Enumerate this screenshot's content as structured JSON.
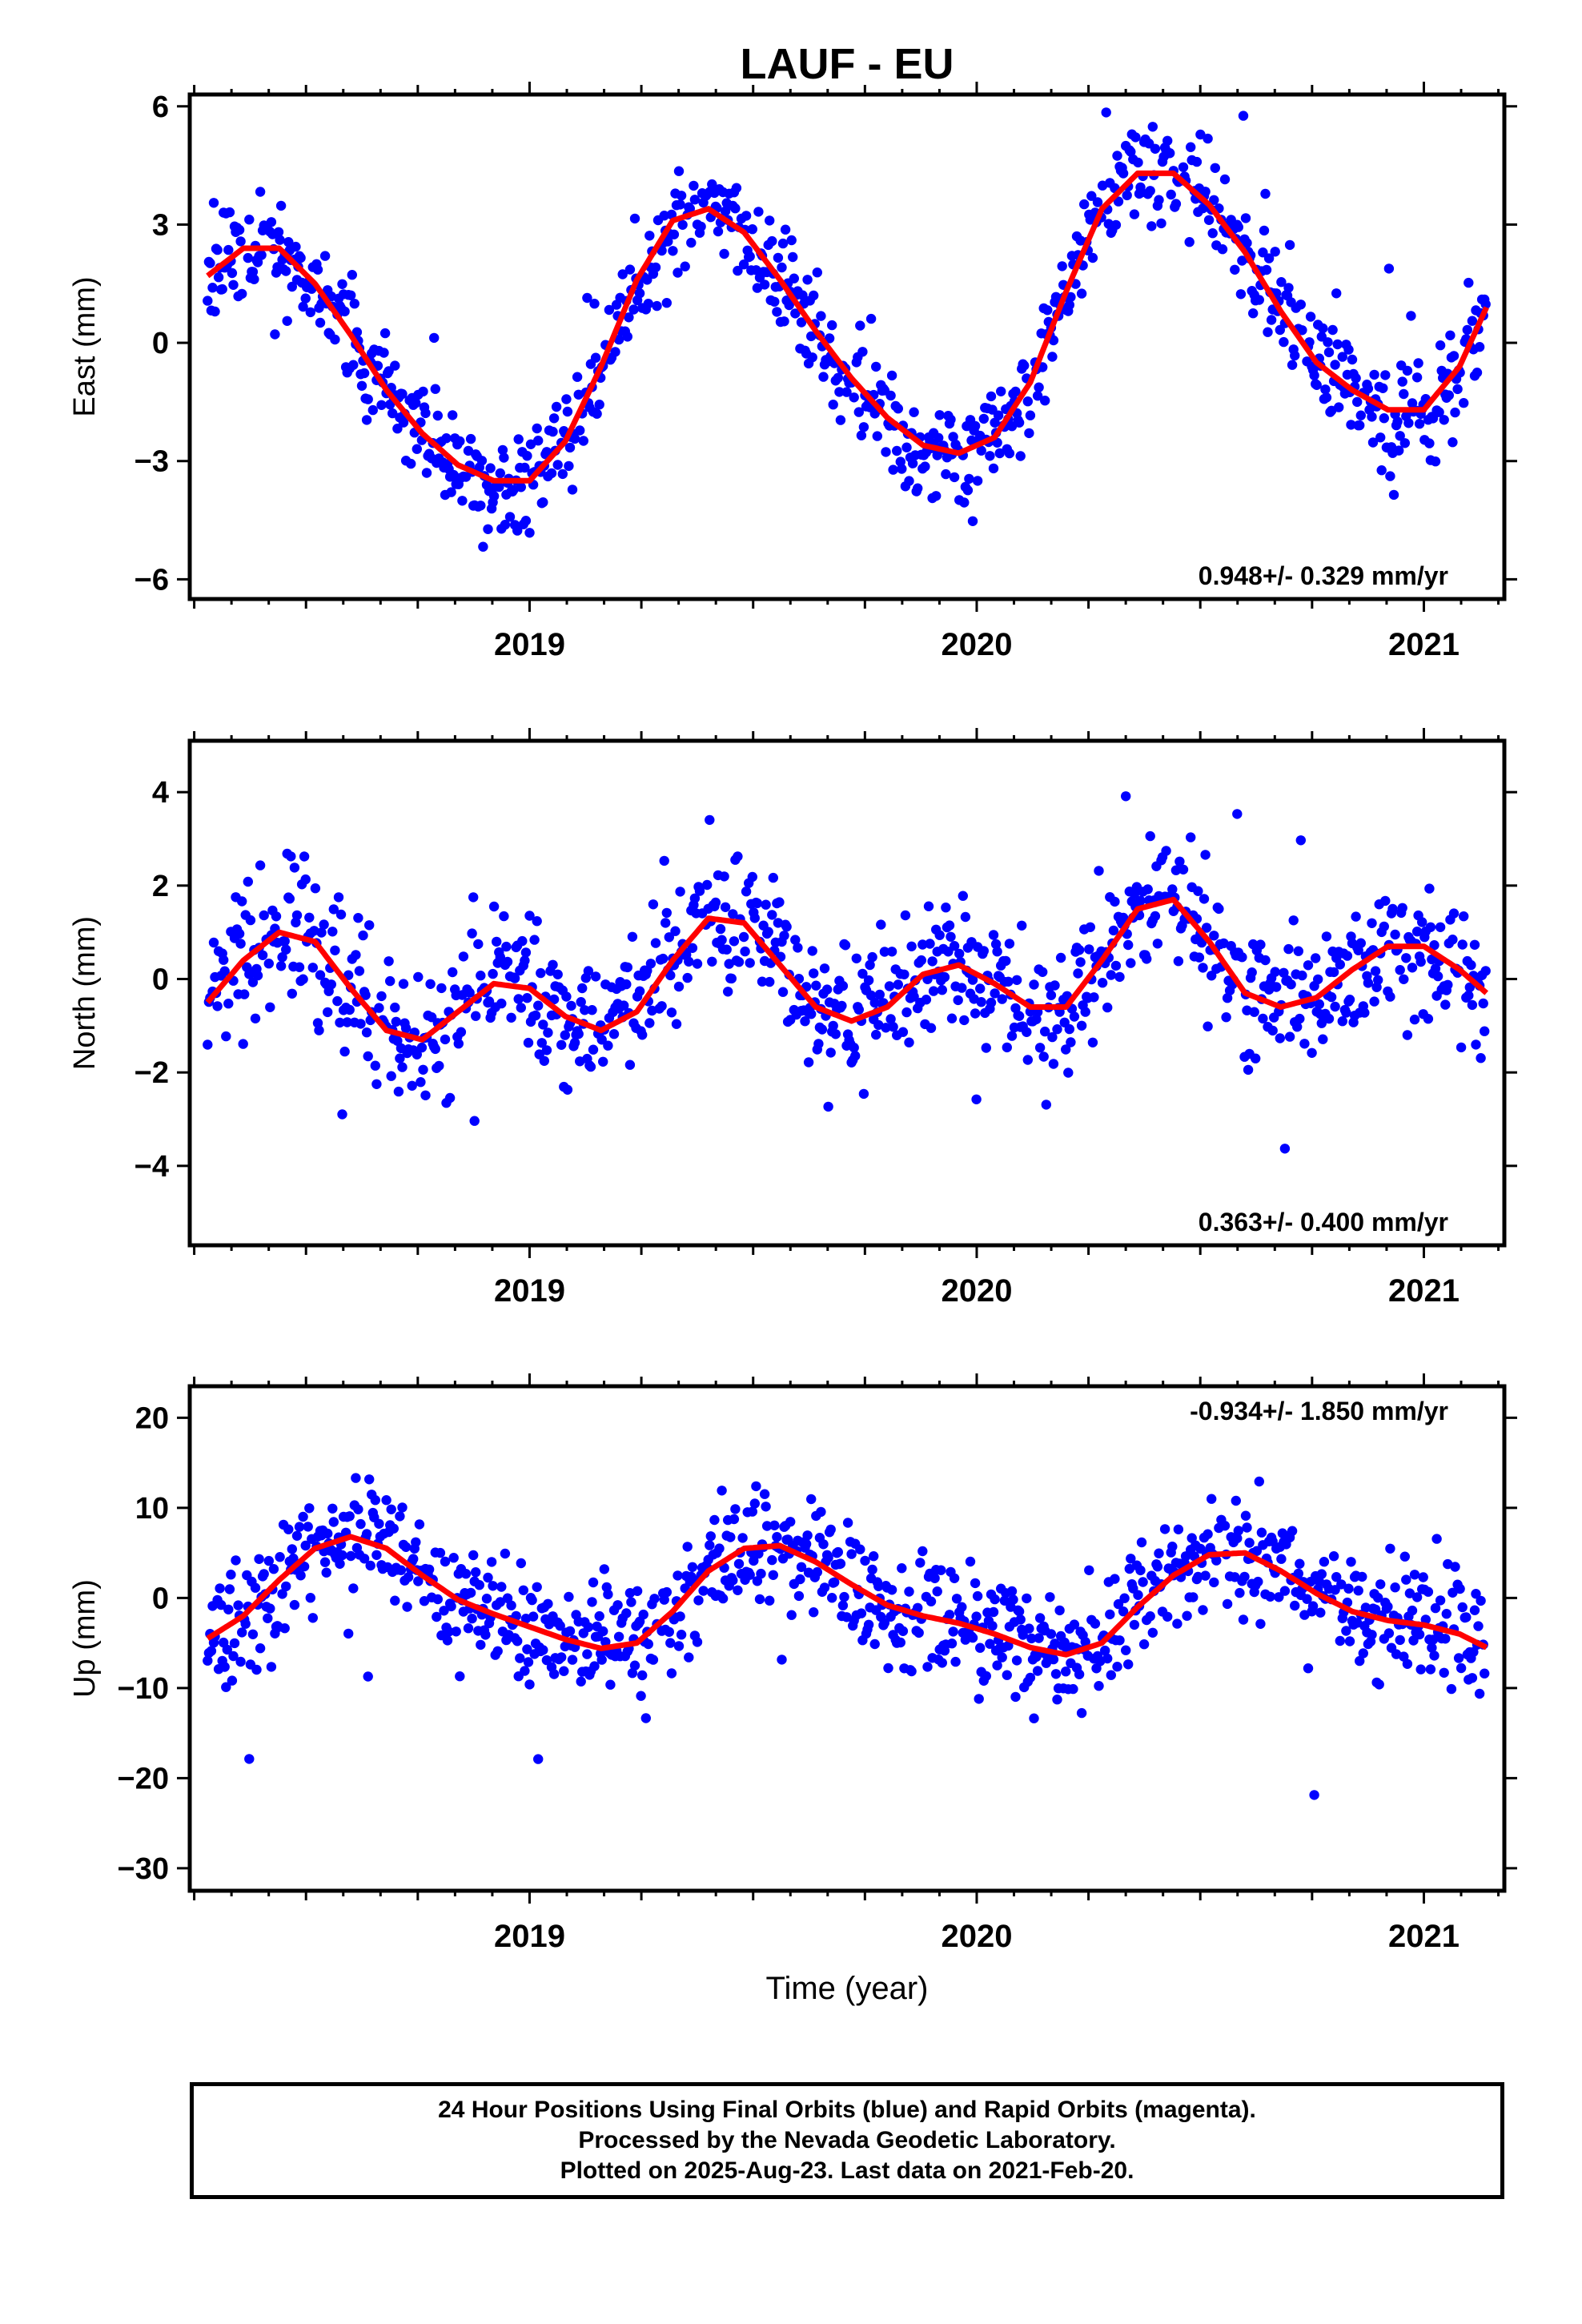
{
  "page": {
    "title": "LAUF - EU",
    "xlabel": "Time (year)",
    "footer": [
      "24 Hour Positions Using Final Orbits (blue) and Rapid Orbits (magenta).",
      "Processed by the Nevada Geodetic Laboratory.",
      "Plotted on 2025-Aug-23. Last data on 2021-Feb-20."
    ]
  },
  "colors": {
    "points": "#0000ff",
    "model": "#ff0000",
    "frame": "#000000"
  },
  "chart_data": [
    {
      "type": "scatter",
      "name": "east",
      "ylabel": "East (mm)",
      "xlim": [
        2018.24,
        2021.18
      ],
      "ylim": [
        -6.5,
        6.3
      ],
      "yticks": [
        6,
        3,
        0,
        -3,
        -6
      ],
      "ytick_labels": [
        "6",
        "3",
        "0",
        "−3",
        "−6"
      ],
      "xticks": [
        2019,
        2020,
        2021
      ],
      "xtick_labels": [
        "2019",
        "2020",
        "2021"
      ],
      "rate_label": "0.948+/- 0.329 mm/yr",
      "rate_position": "bottom-right",
      "model_x": [
        2018.28,
        2018.36,
        2018.44,
        2018.52,
        2018.6,
        2018.68,
        2018.76,
        2018.84,
        2018.92,
        2019.0,
        2019.08,
        2019.16,
        2019.24,
        2019.32,
        2019.4,
        2019.48,
        2019.56,
        2019.64,
        2019.72,
        2019.8,
        2019.88,
        2019.96,
        2020.04,
        2020.12,
        2020.2,
        2020.28,
        2020.36,
        2020.44,
        2020.52,
        2020.6,
        2020.68,
        2020.76,
        2020.84,
        2020.92,
        2021.0,
        2021.08,
        2021.14
      ],
      "model_y": [
        1.7,
        2.4,
        2.4,
        1.5,
        0.2,
        -1.2,
        -2.3,
        -3.1,
        -3.5,
        -3.5,
        -2.5,
        -0.6,
        1.6,
        3.1,
        3.4,
        2.8,
        1.6,
        0.3,
        -0.9,
        -1.9,
        -2.6,
        -2.8,
        -2.4,
        -1.0,
        1.3,
        3.4,
        4.3,
        4.3,
        3.5,
        2.3,
        0.8,
        -0.5,
        -1.2,
        -1.7,
        -1.7,
        -0.6,
        0.9
      ],
      "seasonal": {
        "mean": -0.05,
        "rate": 0.948,
        "a1": 3.05,
        "p1": 1.18,
        "a2": 0.45,
        "p2": 2.2,
        "noise": 0.95,
        "seed": 11
      }
    },
    {
      "type": "scatter",
      "name": "north",
      "ylabel": "North (mm)",
      "xlim": [
        2018.24,
        2021.18
      ],
      "ylim": [
        -5.7,
        5.1
      ],
      "yticks": [
        4,
        2,
        0,
        -2,
        -4
      ],
      "ytick_labels": [
        "4",
        "2",
        "0",
        "−2",
        "−4"
      ],
      "xticks": [
        2019,
        2020,
        2021
      ],
      "xtick_labels": [
        "2019",
        "2020",
        "2021"
      ],
      "rate_label": "0.363+/- 0.400 mm/yr",
      "rate_position": "bottom-right",
      "model_x": [
        2018.28,
        2018.36,
        2018.44,
        2018.52,
        2018.6,
        2018.68,
        2018.76,
        2018.84,
        2018.92,
        2019.0,
        2019.08,
        2019.16,
        2019.24,
        2019.32,
        2019.4,
        2019.48,
        2019.56,
        2019.64,
        2019.72,
        2019.8,
        2019.88,
        2019.96,
        2020.04,
        2020.12,
        2020.2,
        2020.28,
        2020.36,
        2020.44,
        2020.52,
        2020.6,
        2020.68,
        2020.76,
        2020.84,
        2020.92,
        2021.0,
        2021.08,
        2021.14
      ],
      "model_y": [
        -0.5,
        0.4,
        1.0,
        0.8,
        -0.2,
        -1.1,
        -1.3,
        -0.7,
        -0.1,
        -0.2,
        -0.8,
        -1.1,
        -0.7,
        0.4,
        1.3,
        1.2,
        0.3,
        -0.6,
        -0.9,
        -0.6,
        0.1,
        0.3,
        -0.1,
        -0.6,
        -0.6,
        0.4,
        1.5,
        1.7,
        0.8,
        -0.3,
        -0.6,
        -0.4,
        0.2,
        0.7,
        0.7,
        0.2,
        -0.3
      ],
      "seasonal": {
        "mean": -0.1,
        "rate": 0.363,
        "a1": 0.9,
        "p1": 0.6,
        "a2": 0.65,
        "p2": 1.4,
        "noise": 1.0,
        "seed": 23
      }
    },
    {
      "type": "scatter",
      "name": "up",
      "ylabel": "Up (mm)",
      "xlim": [
        2018.24,
        2021.18
      ],
      "ylim": [
        -32.5,
        23.5
      ],
      "yticks": [
        20,
        10,
        0,
        -10,
        -20,
        -30
      ],
      "ytick_labels": [
        "20",
        "10",
        "0",
        "−10",
        "−20",
        "−30"
      ],
      "xticks": [
        2019,
        2020,
        2021
      ],
      "xtick_labels": [
        "2019",
        "2020",
        "2021"
      ],
      "rate_label": "-0.934+/- 1.850 mm/yr",
      "rate_position": "top-right",
      "model_x": [
        2018.28,
        2018.36,
        2018.44,
        2018.52,
        2018.6,
        2018.68,
        2018.76,
        2018.84,
        2018.92,
        2019.0,
        2019.08,
        2019.16,
        2019.24,
        2019.32,
        2019.4,
        2019.48,
        2019.56,
        2019.64,
        2019.72,
        2019.8,
        2019.88,
        2019.96,
        2020.04,
        2020.12,
        2020.2,
        2020.28,
        2020.36,
        2020.44,
        2020.52,
        2020.6,
        2020.68,
        2020.76,
        2020.84,
        2020.92,
        2021.0,
        2021.08,
        2021.14
      ],
      "model_y": [
        -4.5,
        -2.0,
        2.0,
        5.5,
        6.8,
        5.5,
        2.5,
        -0.2,
        -1.8,
        -3.2,
        -4.6,
        -5.6,
        -5.0,
        -1.5,
        3.0,
        5.5,
        5.8,
        4.0,
        1.5,
        -0.8,
        -2.0,
        -2.8,
        -4.0,
        -5.5,
        -6.3,
        -5.0,
        -1.0,
        2.5,
        4.8,
        5.0,
        3.0,
        0.5,
        -1.5,
        -2.5,
        -3.0,
        -4.0,
        -5.5
      ],
      "seasonal": {
        "mean": -0.2,
        "rate": -0.934,
        "a1": 4.6,
        "p1": 0.0,
        "a2": 1.4,
        "p2": 0.9,
        "noise": 4.5,
        "seed": 37
      }
    }
  ]
}
